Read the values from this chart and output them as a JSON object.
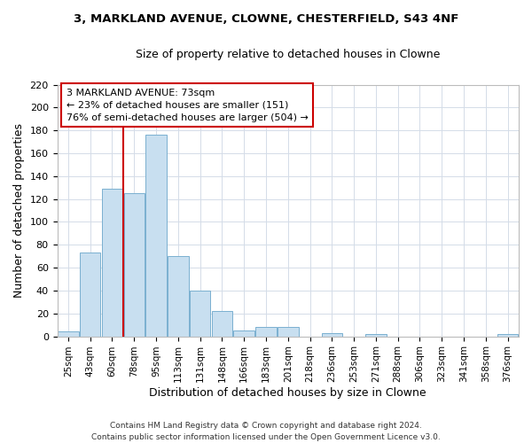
{
  "title": "3, MARKLAND AVENUE, CLOWNE, CHESTERFIELD, S43 4NF",
  "subtitle": "Size of property relative to detached houses in Clowne",
  "xlabel": "Distribution of detached houses by size in Clowne",
  "ylabel": "Number of detached properties",
  "bar_color": "#c8dff0",
  "bar_edge_color": "#7ab0d0",
  "categories": [
    "25sqm",
    "43sqm",
    "60sqm",
    "78sqm",
    "95sqm",
    "113sqm",
    "131sqm",
    "148sqm",
    "166sqm",
    "183sqm",
    "201sqm",
    "218sqm",
    "236sqm",
    "253sqm",
    "271sqm",
    "288sqm",
    "306sqm",
    "323sqm",
    "341sqm",
    "358sqm",
    "376sqm"
  ],
  "values": [
    4,
    73,
    129,
    125,
    176,
    70,
    40,
    22,
    5,
    8,
    8,
    0,
    3,
    0,
    2,
    0,
    0,
    0,
    0,
    0,
    2
  ],
  "ylim": [
    0,
    220
  ],
  "yticks": [
    0,
    20,
    40,
    60,
    80,
    100,
    120,
    140,
    160,
    180,
    200,
    220
  ],
  "vline_x": 2.5,
  "vline_color": "#cc0000",
  "annotation_title": "3 MARKLAND AVENUE: 73sqm",
  "annotation_line1": "← 23% of detached houses are smaller (151)",
  "annotation_line2": "76% of semi-detached houses are larger (504) →",
  "annotation_box_color": "#ffffff",
  "annotation_box_edge": "#cc0000",
  "footer_line1": "Contains HM Land Registry data © Crown copyright and database right 2024.",
  "footer_line2": "Contains public sector information licensed under the Open Government Licence v3.0.",
  "background_color": "#ffffff",
  "grid_color": "#d4dce8"
}
